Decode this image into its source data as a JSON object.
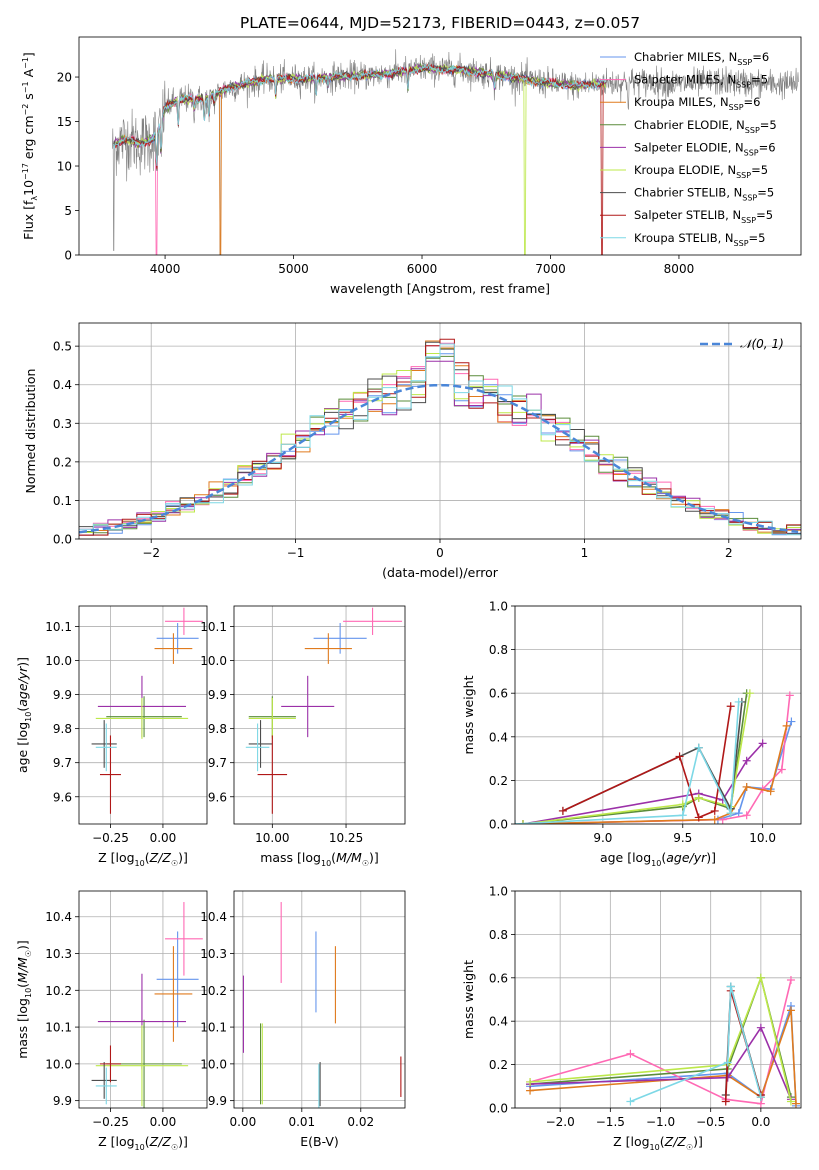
{
  "figure": {
    "title": "PLATE=0644, MJD=52173, FIBERID=0443, z=0.057"
  },
  "palette": {
    "Chabrier MILES": "#6495ED",
    "Salpeter MILES": "#FF69B4",
    "Kroupa MILES": "#E07B1E",
    "Chabrier ELODIE": "#5A8C3A",
    "Salpeter ELODIE": "#9B30A8",
    "Kroupa ELODIE": "#BDE84A",
    "Chabrier STELIB": "#4D4D4D",
    "Salpeter STELIB": "#B01818",
    "Kroupa STELIB": "#7DD8E6",
    "normal_curve": "#4A86D8",
    "data_gray": "#808080"
  },
  "chart_data": [
    {
      "id": "spectrum",
      "type": "line",
      "xlabel": "wavelength [Angstrom, rest frame]",
      "ylabel": "Flux [f_λ10^-17 erg cm^-2 s^-1 A^-1]",
      "xlim": [
        3330,
        8950
      ],
      "ylim": [
        0,
        24.5
      ],
      "xticks": [
        4000,
        5000,
        6000,
        7000,
        8000
      ],
      "yticks": [
        0,
        5,
        10,
        15,
        20
      ],
      "grid": false,
      "legend_position": "top-right",
      "legend": [
        "Chabrier MILES, N_SSP=6",
        "Salpeter MILES, N_SSP=5",
        "Kroupa MILES, N_SSP=6",
        "Chabrier ELODIE, N_SSP=5",
        "Salpeter ELODIE, N_SSP=6",
        "Kroupa ELODIE, N_SSP=5",
        "Chabrier STELIB, N_SSP=5",
        "Salpeter STELIB, N_SSP=5",
        "Kroupa STELIB, N_SSP=5"
      ],
      "continuum_knots": [
        [
          3600,
          12.5
        ],
        [
          3700,
          13
        ],
        [
          3800,
          12.5
        ],
        [
          3900,
          13
        ],
        [
          3950,
          14
        ],
        [
          4000,
          16.5
        ],
        [
          4100,
          17.5
        ],
        [
          4300,
          17.5
        ],
        [
          4500,
          18.8
        ],
        [
          4800,
          19.8
        ],
        [
          5100,
          19.8
        ],
        [
          5300,
          20
        ],
        [
          5600,
          20.2
        ],
        [
          5800,
          20.5
        ],
        [
          6000,
          21
        ],
        [
          6300,
          20.8
        ],
        [
          6600,
          20.2
        ],
        [
          6900,
          19.5
        ],
        [
          7200,
          19
        ],
        [
          7400,
          19.3
        ],
        [
          7700,
          19.5
        ],
        [
          8000,
          19.2
        ],
        [
          8300,
          19.5
        ],
        [
          8700,
          19.2
        ],
        [
          8930,
          19.2
        ]
      ],
      "absorption_lines": [
        [
          3934,
          4.5
        ],
        [
          3969,
          4
        ],
        [
          4102,
          3
        ],
        [
          4227,
          1.2
        ],
        [
          4305,
          2.5
        ],
        [
          4341,
          2.5
        ],
        [
          4383,
          1
        ],
        [
          4861,
          2
        ],
        [
          5175,
          2
        ],
        [
          5270,
          1
        ],
        [
          5890,
          2
        ],
        [
          6563,
          1.5
        ],
        [
          7605,
          2
        ]
      ],
      "model_xrange": [
        3600,
        7430
      ],
      "model_dropouts": [
        [
          3935,
          "Salpeter MILES"
        ],
        [
          4430,
          "Kroupa MILES"
        ],
        [
          6800,
          "Kroupa ELODIE"
        ],
        [
          7400,
          "Salpeter STELIB"
        ]
      ]
    },
    {
      "id": "residuals",
      "type": "line",
      "xlabel": "(data-model)/error",
      "ylabel": "Normed distribution",
      "xlim": [
        -2.5,
        2.5
      ],
      "ylim": [
        0,
        0.56
      ],
      "xticks": [
        -2,
        -1,
        0,
        1,
        2
      ],
      "yticks": [
        0.0,
        0.1,
        0.2,
        0.3,
        0.4,
        0.5
      ],
      "grid": true,
      "legend_position": "top-right",
      "legend": [
        "𝒩(0, 1)"
      ],
      "bin_width": 0.1
    },
    {
      "id": "age_vs_Z",
      "type": "scatter",
      "xlabel": "Z [log10(Z/Z☉)]",
      "ylabel": "age [log10(age/yr)]",
      "xlim": [
        -0.4,
        0.21
      ],
      "ylim": [
        9.52,
        10.16
      ],
      "xticks": [
        -0.25,
        0.0
      ],
      "yticks": [
        9.6,
        9.7,
        9.8,
        9.9,
        10.0,
        10.1
      ],
      "grid": true,
      "points": [
        {
          "model": "Chabrier MILES",
          "x": 0.07,
          "y": 10.065,
          "xerr": 0.1,
          "yerr": 0.045
        },
        {
          "model": "Salpeter MILES",
          "x": 0.1,
          "y": 10.115,
          "xerr": 0.09,
          "yerr": 0.04
        },
        {
          "model": "Kroupa MILES",
          "x": 0.05,
          "y": 10.035,
          "xerr": 0.09,
          "yerr": 0.045
        },
        {
          "model": "Chabrier ELODIE",
          "x": -0.09,
          "y": 9.835,
          "xerr": 0.18,
          "yerr": 0.06
        },
        {
          "model": "Salpeter ELODIE",
          "x": -0.1,
          "y": 9.865,
          "xerr": 0.21,
          "yerr": 0.09
        },
        {
          "model": "Kroupa ELODIE",
          "x": -0.1,
          "y": 9.83,
          "xerr": 0.22,
          "yerr": 0.06
        },
        {
          "model": "Chabrier STELIB",
          "x": -0.28,
          "y": 9.755,
          "xerr": 0.06,
          "yerr": 0.07
        },
        {
          "model": "Salpeter STELIB",
          "x": -0.25,
          "y": 9.665,
          "xerr": 0.05,
          "yerr": 0.115
        },
        {
          "model": "Kroupa STELIB",
          "x": -0.27,
          "y": 9.745,
          "xerr": 0.05,
          "yerr": 0.07
        }
      ]
    },
    {
      "id": "age_vs_mass",
      "type": "scatter",
      "xlabel": "mass [log10(M/M☉)]",
      "ylabel": "",
      "xlim": [
        9.87,
        10.45
      ],
      "ylim": [
        9.52,
        10.16
      ],
      "xticks": [
        10.0,
        10.25
      ],
      "yticks": [
        9.6,
        9.7,
        9.8,
        9.9,
        10.0,
        10.1
      ],
      "grid": true,
      "points": [
        {
          "model": "Chabrier MILES",
          "x": 10.23,
          "y": 10.065,
          "xerr": 0.09,
          "yerr": 0.045
        },
        {
          "model": "Salpeter MILES",
          "x": 10.34,
          "y": 10.115,
          "xerr": 0.1,
          "yerr": 0.04
        },
        {
          "model": "Kroupa MILES",
          "x": 10.19,
          "y": 10.035,
          "xerr": 0.08,
          "yerr": 0.045
        },
        {
          "model": "Chabrier ELODIE",
          "x": 10.0,
          "y": 9.835,
          "xerr": 0.08,
          "yerr": 0.06
        },
        {
          "model": "Salpeter ELODIE",
          "x": 10.12,
          "y": 9.865,
          "xerr": 0.09,
          "yerr": 0.09
        },
        {
          "model": "Kroupa ELODIE",
          "x": 10.0,
          "y": 9.83,
          "xerr": 0.08,
          "yerr": 0.06
        },
        {
          "model": "Chabrier STELIB",
          "x": 9.96,
          "y": 9.755,
          "xerr": 0.04,
          "yerr": 0.07
        },
        {
          "model": "Salpeter STELIB",
          "x": 10.0,
          "y": 9.665,
          "xerr": 0.05,
          "yerr": 0.115
        },
        {
          "model": "Kroupa STELIB",
          "x": 9.95,
          "y": 9.745,
          "xerr": 0.04,
          "yerr": 0.07
        }
      ]
    },
    {
      "id": "weight_vs_age",
      "type": "line",
      "xlabel": "age [log10(age/yr)]",
      "ylabel": "mass weight",
      "xlim": [
        8.45,
        10.24
      ],
      "ylim": [
        0,
        1.0
      ],
      "xticks": [
        9.0,
        9.5,
        10.0
      ],
      "yticks": [
        0.0,
        0.2,
        0.4,
        0.6,
        0.8,
        1.0
      ],
      "grid": true,
      "series": [
        {
          "model": "Chabrier MILES",
          "x": [
            8.5,
            9.72,
            9.85,
            9.9,
            10.05,
            10.18
          ],
          "y": [
            0.0,
            0.02,
            0.05,
            0.17,
            0.16,
            0.47
          ]
        },
        {
          "model": "Salpeter MILES",
          "x": [
            8.5,
            9.75,
            9.9,
            10.0,
            10.12,
            10.17
          ],
          "y": [
            0.0,
            0.02,
            0.04,
            0.16,
            0.25,
            0.59
          ]
        },
        {
          "model": "Kroupa MILES",
          "x": [
            8.5,
            9.7,
            9.8,
            9.9,
            10.05,
            10.15
          ],
          "y": [
            0.0,
            0.02,
            0.05,
            0.17,
            0.15,
            0.45
          ]
        },
        {
          "model": "Chabrier ELODIE",
          "x": [
            8.5,
            9.5,
            9.6,
            9.8,
            9.9
          ],
          "y": [
            0.0,
            0.08,
            0.12,
            0.07,
            0.6
          ]
        },
        {
          "model": "Salpeter ELODIE",
          "x": [
            8.5,
            9.6,
            9.75,
            9.9,
            10.0
          ],
          "y": [
            0.0,
            0.14,
            0.11,
            0.29,
            0.37
          ]
        },
        {
          "model": "Kroupa ELODIE",
          "x": [
            8.5,
            9.5,
            9.6,
            9.8,
            9.92
          ],
          "y": [
            0.0,
            0.09,
            0.12,
            0.08,
            0.6
          ]
        },
        {
          "model": "Chabrier STELIB",
          "x": [
            8.75,
            9.6,
            9.8,
            9.87
          ],
          "y": [
            0.06,
            0.35,
            0.07,
            0.56
          ]
        },
        {
          "model": "Salpeter STELIB",
          "x": [
            8.75,
            9.48,
            9.6,
            9.7,
            9.8
          ],
          "y": [
            0.06,
            0.31,
            0.03,
            0.06,
            0.54
          ]
        },
        {
          "model": "Kroupa STELIB",
          "x": [
            8.45,
            9.5,
            9.6,
            9.8,
            9.85
          ],
          "y": [
            0.0,
            0.04,
            0.35,
            0.05,
            0.56
          ]
        }
      ]
    },
    {
      "id": "mass_vs_Z",
      "type": "scatter",
      "xlabel": "Z [log10(Z/Z☉)]",
      "ylabel": "mass [log10(M/M☉)]",
      "xlim": [
        -0.4,
        0.21
      ],
      "ylim": [
        9.88,
        10.47
      ],
      "xticks": [
        -0.25,
        0.0
      ],
      "yticks": [
        9.9,
        10.0,
        10.1,
        10.2,
        10.3,
        10.4
      ],
      "grid": true,
      "points": [
        {
          "model": "Chabrier MILES",
          "x": 0.07,
          "y": 10.23,
          "xerr": 0.1,
          "yerr": 0.13
        },
        {
          "model": "Salpeter MILES",
          "x": 0.1,
          "y": 10.34,
          "xerr": 0.09,
          "yerr": 0.1
        },
        {
          "model": "Kroupa MILES",
          "x": 0.05,
          "y": 10.19,
          "xerr": 0.09,
          "yerr": 0.13
        },
        {
          "model": "Chabrier ELODIE",
          "x": -0.09,
          "y": 10.0,
          "xerr": 0.18,
          "yerr": 0.12
        },
        {
          "model": "Salpeter ELODIE",
          "x": -0.1,
          "y": 10.115,
          "xerr": 0.21,
          "yerr": 0.13
        },
        {
          "model": "Kroupa ELODIE",
          "x": -0.1,
          "y": 9.995,
          "xerr": 0.22,
          "yerr": 0.11
        },
        {
          "model": "Chabrier STELIB",
          "x": -0.28,
          "y": 9.955,
          "xerr": 0.06,
          "yerr": 0.05
        },
        {
          "model": "Salpeter STELIB",
          "x": -0.25,
          "y": 10.0,
          "xerr": 0.05,
          "yerr": 0.05
        },
        {
          "model": "Kroupa STELIB",
          "x": -0.27,
          "y": 9.94,
          "xerr": 0.05,
          "yerr": 0.05
        }
      ]
    },
    {
      "id": "mass_vs_EBV",
      "type": "scatter",
      "xlabel": "E(B-V)",
      "ylabel": "",
      "xlim": [
        -0.0015,
        0.0275
      ],
      "ylim": [
        9.88,
        10.47
      ],
      "xticks": [
        0.0,
        0.01,
        0.02
      ],
      "yticks": [
        9.9,
        10.0,
        10.1,
        10.2,
        10.3,
        10.4
      ],
      "grid": true,
      "points": [
        {
          "model": "Chabrier MILES",
          "x": 0.0124,
          "y": 10.25,
          "yerr": 0.11
        },
        {
          "model": "Salpeter MILES",
          "x": 0.0065,
          "y": 10.33,
          "yerr": 0.11
        },
        {
          "model": "Kroupa MILES",
          "x": 0.0157,
          "y": 10.215,
          "yerr": 0.105
        },
        {
          "model": "Chabrier ELODIE",
          "x": 0.003,
          "y": 10.0,
          "yerr": 0.11
        },
        {
          "model": "Salpeter ELODIE",
          "x": 0.0001,
          "y": 10.135,
          "yerr": 0.105
        },
        {
          "model": "Kroupa ELODIE",
          "x": 0.0033,
          "y": 10.0,
          "yerr": 0.11
        },
        {
          "model": "Chabrier STELIB",
          "x": 0.0131,
          "y": 9.945,
          "yerr": 0.06
        },
        {
          "model": "Salpeter STELIB",
          "x": 0.0268,
          "y": 9.965,
          "yerr": 0.055
        },
        {
          "model": "Kroupa STELIB",
          "x": 0.0129,
          "y": 9.94,
          "yerr": 0.06
        }
      ]
    },
    {
      "id": "weight_vs_Z",
      "type": "line",
      "xlabel": "Z [log10(Z/Z☉)]",
      "ylabel": "mass weight",
      "xlim": [
        -2.45,
        0.4
      ],
      "ylim": [
        0,
        1.0
      ],
      "xticks": [
        -2.0,
        -1.5,
        -1.0,
        -0.5,
        0.0
      ],
      "yticks": [
        0.0,
        0.2,
        0.4,
        0.6,
        0.8,
        1.0
      ],
      "grid": true,
      "series": [
        {
          "model": "Chabrier MILES",
          "x": [
            -2.3,
            -0.33,
            0.0,
            0.3,
            0.35
          ],
          "y": [
            0.1,
            0.16,
            0.05,
            0.47,
            0.01
          ]
        },
        {
          "model": "Salpeter MILES",
          "x": [
            -2.3,
            -1.3,
            -0.35,
            0.0,
            0.3
          ],
          "y": [
            0.12,
            0.25,
            0.04,
            0.02,
            0.59
          ]
        },
        {
          "model": "Kroupa MILES",
          "x": [
            -2.3,
            -0.33,
            0.0,
            0.3,
            0.35
          ],
          "y": [
            0.08,
            0.15,
            0.05,
            0.45,
            0.02
          ]
        },
        {
          "model": "Chabrier ELODIE",
          "x": [
            -2.3,
            -0.33,
            0.0,
            0.3
          ],
          "y": [
            0.11,
            0.18,
            0.6,
            0.05
          ]
        },
        {
          "model": "Salpeter ELODIE",
          "x": [
            -2.3,
            -0.33,
            0.0,
            0.3
          ],
          "y": [
            0.11,
            0.14,
            0.37,
            0.04
          ]
        },
        {
          "model": "Kroupa ELODIE",
          "x": [
            -2.3,
            -0.33,
            0.0,
            0.3
          ],
          "y": [
            0.12,
            0.2,
            0.6,
            0.03
          ]
        },
        {
          "model": "Chabrier STELIB",
          "x": [
            -0.35,
            -0.3,
            0.0
          ],
          "y": [
            0.06,
            0.56,
            0.06
          ]
        },
        {
          "model": "Salpeter STELIB",
          "x": [
            -0.35,
            -0.3,
            0.0
          ],
          "y": [
            0.03,
            0.54,
            0.06
          ]
        },
        {
          "model": "Kroupa STELIB",
          "x": [
            -1.3,
            -0.33,
            -0.3,
            0.0
          ],
          "y": [
            0.03,
            0.21,
            0.56,
            0.05
          ]
        }
      ]
    }
  ]
}
